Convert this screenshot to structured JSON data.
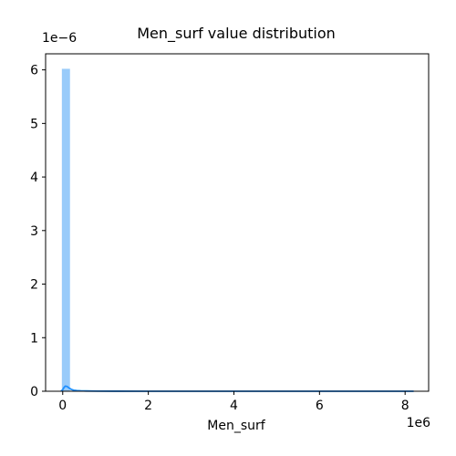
{
  "chart_data": {
    "type": "bar",
    "title": "Men_surf value distribution",
    "xlabel": "Men_surf",
    "ylabel": "",
    "x_offset_label": "1e6",
    "y_offset_label": "1e−6",
    "xlim": [
      -400000,
      8550000
    ],
    "ylim": [
      0,
      6.3e-06
    ],
    "x_ticks": [
      {
        "value": 0,
        "label": "0"
      },
      {
        "value": 2000000,
        "label": "2"
      },
      {
        "value": 4000000,
        "label": "4"
      },
      {
        "value": 6000000,
        "label": "6"
      },
      {
        "value": 8000000,
        "label": "8"
      }
    ],
    "y_ticks": [
      {
        "value": 0,
        "label": "0"
      },
      {
        "value": 1e-06,
        "label": "1"
      },
      {
        "value": 2e-06,
        "label": "2"
      },
      {
        "value": 3e-06,
        "label": "3"
      },
      {
        "value": 4e-06,
        "label": "4"
      },
      {
        "value": 5e-06,
        "label": "5"
      },
      {
        "value": 6e-06,
        "label": "6"
      }
    ],
    "bins": [
      {
        "x0": -20000,
        "x1": 170000,
        "value": 6.02e-06
      }
    ],
    "kde": {
      "x": [
        -40000,
        0,
        30000,
        60000,
        100000,
        150000,
        200000,
        260000,
        330000,
        420000,
        550000,
        800000,
        1200000,
        2000000,
        3000000,
        4000000,
        5000000,
        6000000,
        7000000,
        8200000
      ],
      "y": [
        0.0,
        3e-08,
        7e-08,
        9.5e-08,
        9e-08,
        6e-08,
        3.5e-08,
        2e-08,
        1.2e-08,
        8e-09,
        5e-09,
        2e-09,
        1e-09,
        0.0,
        0.0,
        0.0,
        0.0,
        0.0,
        0.0,
        0.0
      ]
    },
    "grid": false,
    "legend": "none",
    "colors": {
      "bar": "#99cbfa",
      "line": "#1f8fff",
      "axes": "#000000"
    }
  }
}
